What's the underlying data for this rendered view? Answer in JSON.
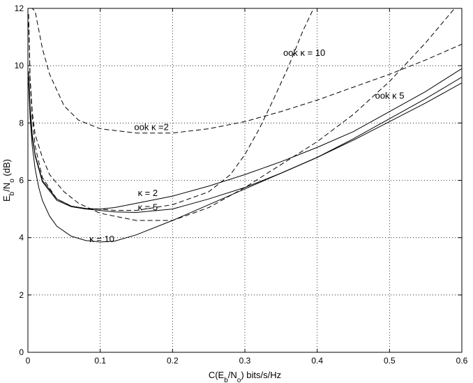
{
  "chart_data": {
    "type": "line",
    "title": "",
    "xlabel": "C(E_b/N_o) bits/s/Hz",
    "ylabel": "E_b/N_o (dB)",
    "xlim": [
      0,
      0.6
    ],
    "ylim": [
      0,
      12
    ],
    "xticks": [
      "0",
      "0.1",
      "0.2",
      "0.3",
      "0.4",
      "0.5",
      "0.6"
    ],
    "yticks": [
      "0",
      "2",
      "4",
      "6",
      "8",
      "10",
      "12"
    ],
    "grid": true,
    "legend": "none",
    "series": [
      {
        "style": "solid",
        "x": [
          0.001,
          0.003,
          0.006,
          0.01,
          0.02,
          0.04,
          0.06,
          0.08,
          0.1,
          0.12,
          0.15,
          0.2,
          0.25,
          0.3,
          0.35,
          0.4,
          0.45,
          0.5,
          0.55,
          0.6
        ],
        "y": [
          9.8,
          8.6,
          7.6,
          6.9,
          6.0,
          5.35,
          5.1,
          5.02,
          5.0,
          5.05,
          5.2,
          5.45,
          5.8,
          6.2,
          6.65,
          7.15,
          7.7,
          8.4,
          9.1,
          9.9
        ]
      },
      {
        "style": "solid",
        "x": [
          0.001,
          0.003,
          0.006,
          0.01,
          0.02,
          0.04,
          0.06,
          0.08,
          0.1,
          0.12,
          0.15,
          0.2,
          0.25,
          0.3,
          0.35,
          0.4,
          0.45,
          0.5,
          0.55,
          0.6
        ],
        "y": [
          9.6,
          8.4,
          7.5,
          6.85,
          5.95,
          5.3,
          5.08,
          5.0,
          4.95,
          4.9,
          4.88,
          5.0,
          5.35,
          5.75,
          6.25,
          6.8,
          7.45,
          8.15,
          8.85,
          9.6
        ]
      },
      {
        "style": "solid",
        "x": [
          0.001,
          0.003,
          0.006,
          0.01,
          0.015,
          0.02,
          0.03,
          0.04,
          0.06,
          0.08,
          0.1,
          0.12,
          0.15,
          0.2,
          0.25,
          0.3,
          0.35,
          0.4,
          0.45,
          0.5,
          0.55,
          0.6
        ],
        "y": [
          9.4,
          8.2,
          7.2,
          6.4,
          5.75,
          5.3,
          4.75,
          4.4,
          4.05,
          3.9,
          3.85,
          3.88,
          4.1,
          4.6,
          5.15,
          5.7,
          6.25,
          6.8,
          7.4,
          8.05,
          8.7,
          9.4
        ]
      },
      {
        "style": "dashed",
        "x": [
          0.003,
          0.006,
          0.01,
          0.02,
          0.03,
          0.05,
          0.07,
          0.1,
          0.15,
          0.2,
          0.25,
          0.3,
          0.35,
          0.4,
          0.45,
          0.5,
          0.55,
          0.6
        ],
        "y": [
          12.0,
          12.0,
          11.9,
          10.6,
          9.7,
          8.6,
          8.1,
          7.8,
          7.65,
          7.65,
          7.8,
          8.05,
          8.4,
          8.8,
          9.25,
          9.7,
          10.2,
          10.75
        ]
      },
      {
        "style": "dashed",
        "x": [
          0.001,
          0.003,
          0.006,
          0.01,
          0.02,
          0.03,
          0.05,
          0.07,
          0.1,
          0.15,
          0.2,
          0.25,
          0.3,
          0.35,
          0.4,
          0.45,
          0.5,
          0.55,
          0.59
        ],
        "y": [
          11.8,
          9.6,
          8.4,
          7.6,
          6.8,
          6.2,
          5.6,
          5.2,
          4.85,
          4.6,
          4.6,
          5.05,
          5.75,
          6.55,
          7.35,
          8.3,
          9.45,
          10.8,
          12.0
        ]
      },
      {
        "style": "dashed",
        "x": [
          0.001,
          0.003,
          0.006,
          0.01,
          0.02,
          0.04,
          0.06,
          0.08,
          0.1,
          0.12,
          0.15,
          0.2,
          0.25,
          0.28,
          0.3,
          0.32,
          0.34,
          0.36,
          0.38,
          0.395
        ],
        "y": [
          11.5,
          9.5,
          8.2,
          7.2,
          6.1,
          5.35,
          5.1,
          5.0,
          5.0,
          4.95,
          4.95,
          5.15,
          5.6,
          6.2,
          6.9,
          7.8,
          8.85,
          9.95,
          11.2,
          12.0
        ]
      }
    ],
    "annotations": [
      {
        "text": "ook κ = 10",
        "x": 0.353,
        "y": 10.35
      },
      {
        "text": "ook κ 5",
        "x": 0.48,
        "y": 8.85
      },
      {
        "text": "ook κ =2",
        "x": 0.147,
        "y": 7.75
      },
      {
        "text": "κ = 2",
        "x": 0.152,
        "y": 5.45
      },
      {
        "text": "κ = 5",
        "x": 0.152,
        "y": 4.95
      },
      {
        "text": "κ = 10",
        "x": 0.085,
        "y": 3.85
      }
    ]
  }
}
